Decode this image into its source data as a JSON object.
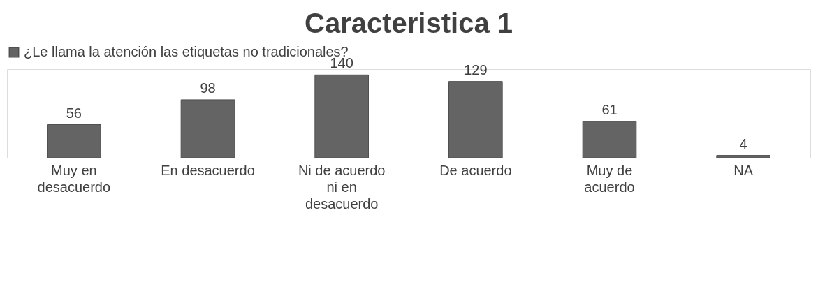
{
  "chart_data": {
    "type": "bar",
    "title": "Caracteristica 1",
    "categories": [
      "Muy en desacuerdo",
      "En desacuerdo",
      "Ni de acuerdo ni en desacuerdo",
      "De acuerdo",
      "Muy de acuerdo",
      "NA"
    ],
    "series": [
      {
        "name": "¿Le llama la atención las etiquetas no tradicionales?",
        "color": "#646464",
        "values": [
          56,
          98,
          140,
          129,
          61,
          4
        ]
      }
    ],
    "data_labels": true,
    "legend": "top"
  }
}
